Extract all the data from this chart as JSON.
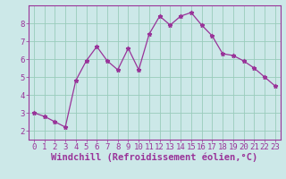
{
  "x": [
    0,
    1,
    2,
    3,
    4,
    5,
    6,
    7,
    8,
    9,
    10,
    11,
    12,
    13,
    14,
    15,
    16,
    17,
    18,
    19,
    20,
    21,
    22,
    23
  ],
  "y": [
    3.0,
    2.8,
    2.5,
    2.2,
    4.8,
    5.9,
    6.7,
    5.9,
    5.4,
    6.6,
    5.4,
    7.4,
    8.4,
    7.9,
    8.4,
    8.6,
    7.9,
    7.3,
    6.3,
    6.2,
    5.9,
    5.5,
    5.0,
    4.5
  ],
  "line_color": "#993399",
  "marker": "*",
  "bg_color": "#cce8e8",
  "grid_color": "#99ccbb",
  "xlabel": "Windchill (Refroidissement éolien,°C)",
  "xlim": [
    -0.5,
    23.5
  ],
  "ylim": [
    1.5,
    9.0
  ],
  "yticks": [
    2,
    3,
    4,
    5,
    6,
    7,
    8
  ],
  "xticks": [
    0,
    1,
    2,
    3,
    4,
    5,
    6,
    7,
    8,
    9,
    10,
    11,
    12,
    13,
    14,
    15,
    16,
    17,
    18,
    19,
    20,
    21,
    22,
    23
  ],
  "axis_color": "#993399",
  "tick_color": "#993399",
  "label_color": "#993399",
  "xlabel_fontsize": 7.5,
  "tick_fontsize": 6.5
}
